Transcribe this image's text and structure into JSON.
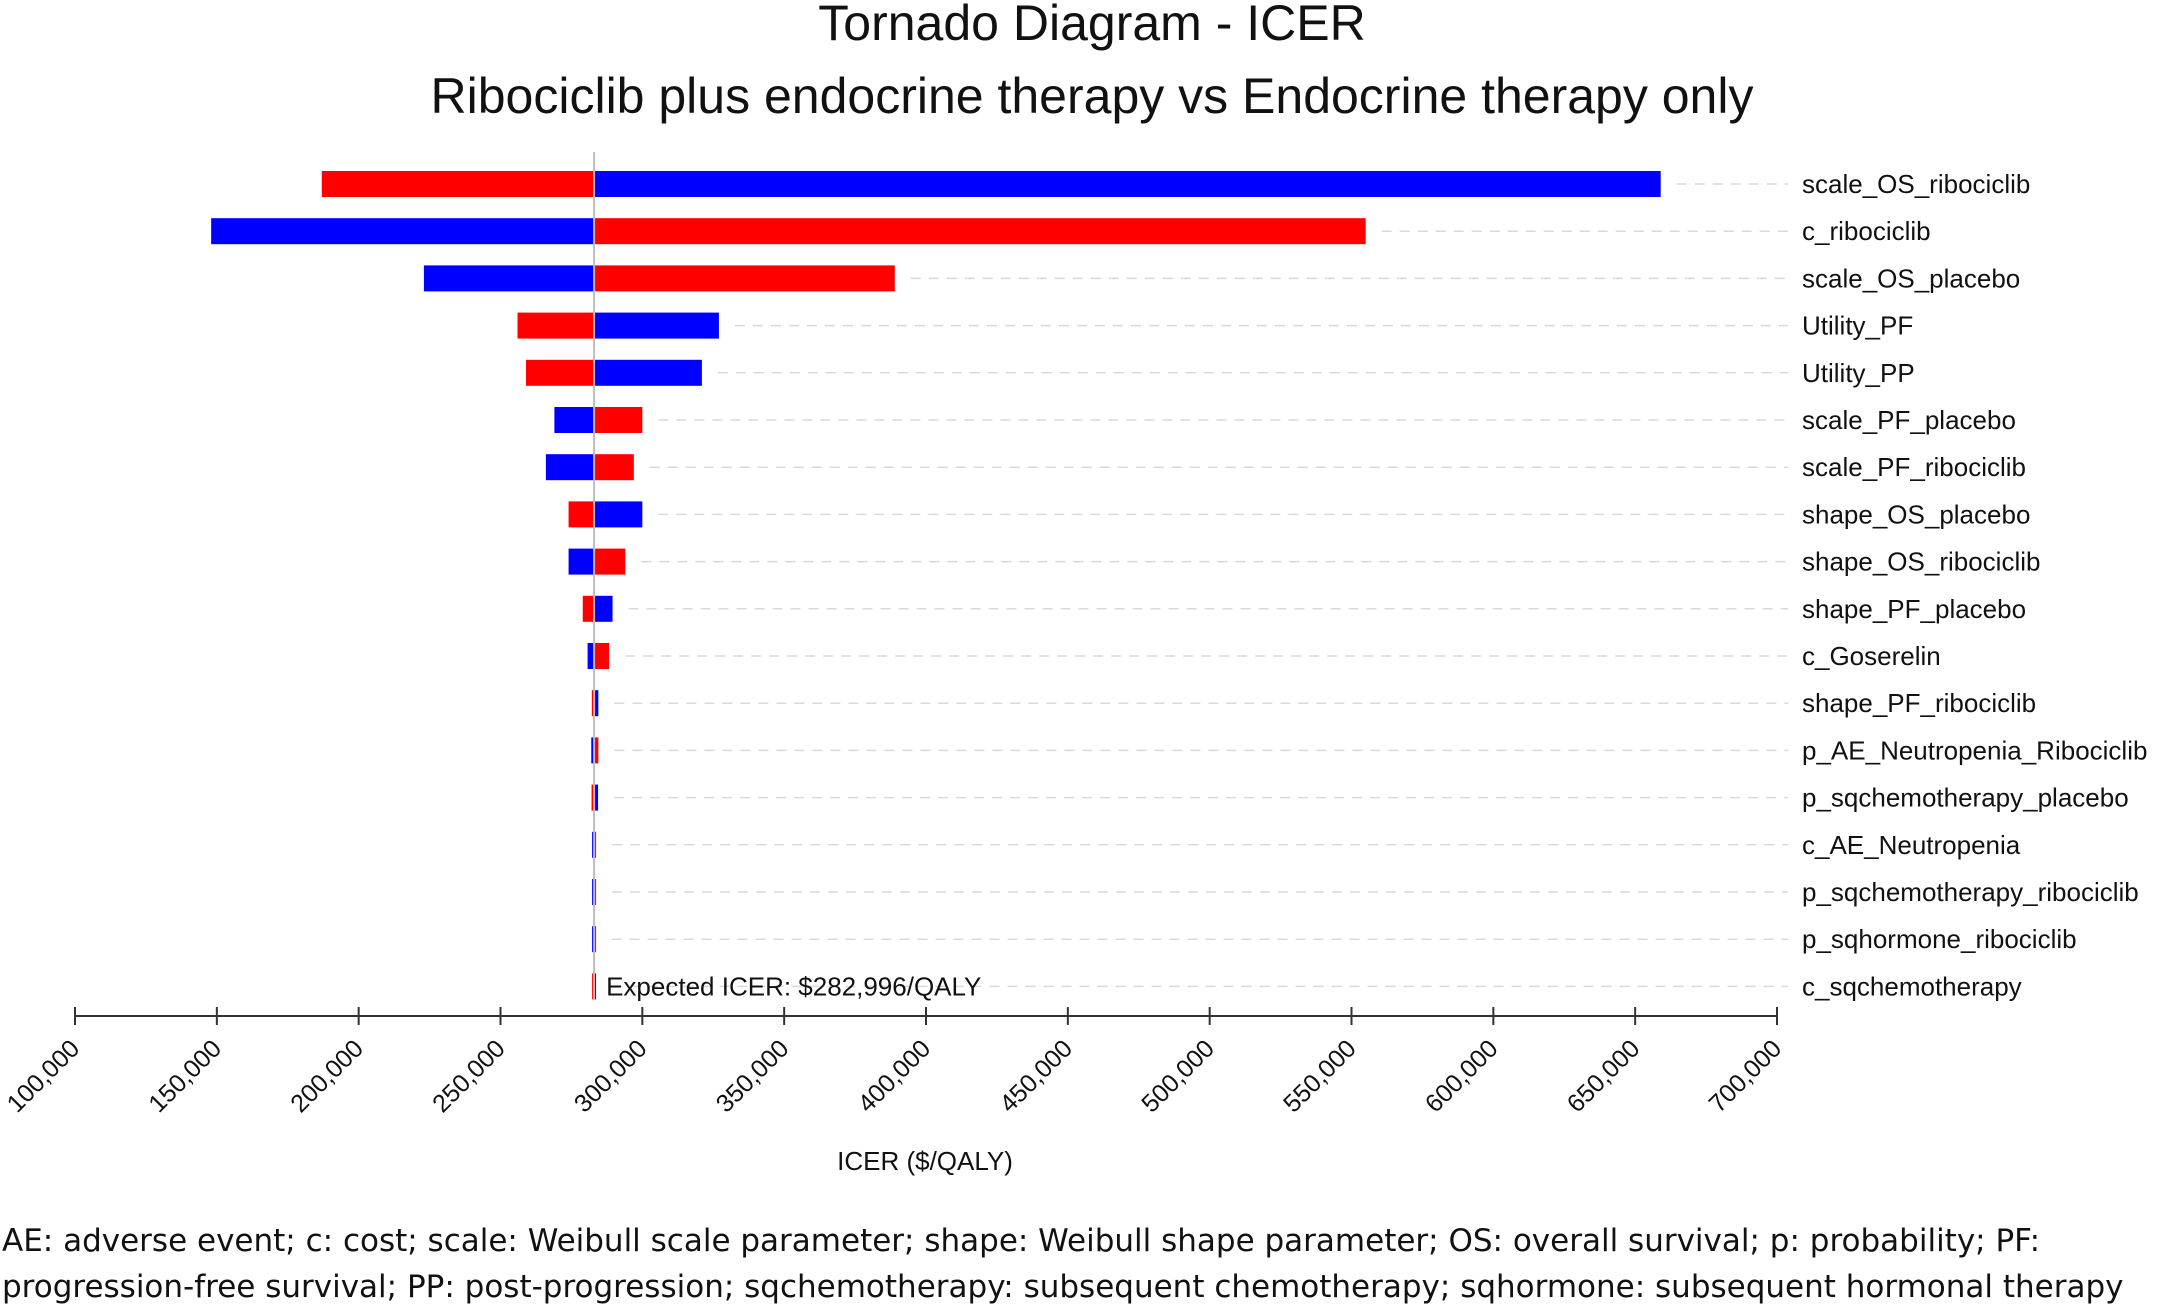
{
  "chart_data": {
    "type": "tornado",
    "title": "Tornado Diagram - ICER",
    "subtitle": "Ribociclib plus endocrine therapy vs Endocrine therapy only",
    "xlabel": "ICER ($/QALY)",
    "xlim": [
      100000,
      700000
    ],
    "x_ticks": [
      100000,
      150000,
      200000,
      250000,
      300000,
      350000,
      400000,
      450000,
      500000,
      550000,
      600000,
      650000,
      700000
    ],
    "tick_labels": [
      "100,000",
      "150,000",
      "200,000",
      "250,000",
      "300,000",
      "350,000",
      "400,000",
      "450,000",
      "500,000",
      "550,000",
      "600,000",
      "650,000",
      "700,000"
    ],
    "base_value": 282996,
    "base_label": "Expected ICER: $282,996/QALY",
    "grid": "dashed row guides",
    "colors": {
      "red": "#ff0000",
      "blue": "#0000ff"
    },
    "parameters": [
      {
        "name": "scale_OS_ribociclib",
        "left": 187000,
        "left_color": "red",
        "right": 659000,
        "right_color": "blue"
      },
      {
        "name": "c_ribociclib",
        "left": 148000,
        "left_color": "blue",
        "right": 555000,
        "right_color": "red"
      },
      {
        "name": "scale_OS_placebo",
        "left": 223000,
        "left_color": "blue",
        "right": 389000,
        "right_color": "red"
      },
      {
        "name": "Utility_PF",
        "left": 256000,
        "left_color": "red",
        "right": 327000,
        "right_color": "blue"
      },
      {
        "name": "Utility_PP",
        "left": 259000,
        "left_color": "red",
        "right": 321000,
        "right_color": "blue"
      },
      {
        "name": "scale_PF_placebo",
        "left": 269000,
        "left_color": "blue",
        "right": 300000,
        "right_color": "red"
      },
      {
        "name": "scale_PF_ribociclib",
        "left": 266000,
        "left_color": "blue",
        "right": 297000,
        "right_color": "red"
      },
      {
        "name": "shape_OS_placebo",
        "left": 274000,
        "left_color": "red",
        "right": 300000,
        "right_color": "blue"
      },
      {
        "name": "shape_OS_ribociclib",
        "left": 274000,
        "left_color": "blue",
        "right": 294000,
        "right_color": "red"
      },
      {
        "name": "shape_PF_placebo",
        "left": 279000,
        "left_color": "red",
        "right": 289500,
        "right_color": "blue"
      },
      {
        "name": "c_Goserelin",
        "left": 280700,
        "left_color": "blue",
        "right": 288300,
        "right_color": "red"
      },
      {
        "name": "shape_PF_ribociclib",
        "left": 282200,
        "left_color": "red",
        "right": 284500,
        "right_color": "blue"
      },
      {
        "name": "p_AE_Neutropenia_Ribociclib",
        "left": 282000,
        "left_color": "blue",
        "right": 284500,
        "right_color": "red"
      },
      {
        "name": "p_sqchemotherapy_placebo",
        "left": 282100,
        "left_color": "red",
        "right": 284400,
        "right_color": "blue"
      },
      {
        "name": "c_AE_Neutropenia",
        "left": 282300,
        "left_color": "blue",
        "right": 283700,
        "right_color": "red"
      },
      {
        "name": "p_sqchemotherapy_ribociclib",
        "left": 282300,
        "left_color": "blue",
        "right": 283700,
        "right_color": "red"
      },
      {
        "name": "p_sqhormone_ribociclib",
        "left": 282700,
        "left_color": "blue",
        "right": 283500,
        "right_color": "red"
      },
      {
        "name": "c_sqchemotherapy",
        "left": 282600,
        "left_color": "red",
        "right": 283500,
        "right_color": "blue"
      }
    ]
  },
  "footnote": {
    "line1": "AE: adverse event; c: cost; scale: Weibull scale parameter; shape: Weibull shape parameter; OS: overall survival; p: probability; PF:",
    "line2": "progression-free survival; PP: post-progression; sqchemotherapy: subsequent chemotherapy; sqhormone: subsequent hormonal therapy"
  }
}
